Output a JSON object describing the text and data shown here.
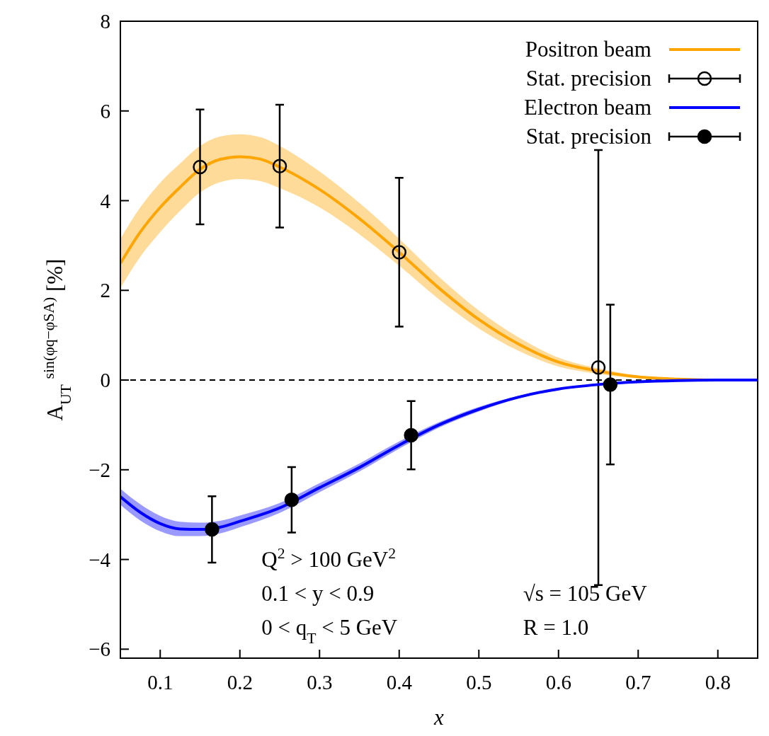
{
  "chart_data": {
    "type": "line",
    "xlabel": "x",
    "ylabel": "A$_{UT}$$^{sin(φq−φSA)}$ [%]",
    "xlim": [
      0.05,
      0.85
    ],
    "xticks": [
      0.1,
      0.2,
      0.3,
      0.4,
      0.5,
      0.6,
      0.7,
      0.8
    ],
    "ylim": [
      -6.2,
      8
    ],
    "yticks": [
      {
        "value": -6,
        "label": "−6"
      },
      {
        "value": -4,
        "label": "−4"
      },
      {
        "value": -2,
        "label": "−2"
      },
      0,
      2,
      4,
      6,
      8
    ],
    "grid": false,
    "legend": "top right",
    "ref_lines": [
      {
        "axis": "y",
        "value": 0,
        "color": "#000000",
        "line_style": "dashed"
      }
    ],
    "annotations": [
      "Q$^{2}$ > 100 GeV$^{2}$",
      "0.1 < y < 0.9",
      "0 < q$_{T}$ < 5 GeV",
      "√s = 105 GeV",
      "R = 1.0"
    ],
    "series": [
      {
        "name": "Positron beam",
        "color": "#ffa500",
        "x": [
          0.05,
          0.075,
          0.1,
          0.125,
          0.15,
          0.175,
          0.2,
          0.225,
          0.25,
          0.3,
          0.35,
          0.4,
          0.45,
          0.5,
          0.55,
          0.6,
          0.65,
          0.7,
          0.75,
          0.8,
          0.85
        ],
        "values": [
          2.6,
          3.3,
          3.85,
          4.3,
          4.7,
          4.92,
          4.98,
          4.93,
          4.75,
          4.25,
          3.6,
          2.85,
          2.05,
          1.35,
          0.8,
          0.4,
          0.2,
          0.07,
          0.02,
          0,
          0
        ],
        "lower": [
          2.05,
          2.75,
          3.3,
          3.77,
          4.18,
          4.41,
          4.48,
          4.44,
          4.28,
          3.85,
          3.25,
          2.55,
          1.8,
          1.15,
          0.65,
          0.3,
          0.14,
          0.04,
          0.01,
          0,
          0
        ],
        "upper": [
          3.15,
          3.85,
          4.4,
          4.83,
          5.22,
          5.43,
          5.48,
          5.42,
          5.22,
          4.65,
          3.95,
          3.15,
          2.3,
          1.55,
          0.95,
          0.5,
          0.26,
          0.1,
          0.03,
          0,
          0
        ]
      },
      {
        "name": "Stat. precision",
        "type": "scatter",
        "color": "#000000",
        "marker": "circle",
        "x": [
          0.15,
          0.25,
          0.4,
          0.65
        ],
        "values": [
          4.75,
          4.77,
          2.85,
          0.28
        ],
        "errors": [
          1.28,
          1.37,
          1.66,
          4.85
        ]
      },
      {
        "name": "Electron beam",
        "color": "#0000ff",
        "x": [
          0.05,
          0.075,
          0.1,
          0.125,
          0.15,
          0.175,
          0.2,
          0.25,
          0.3,
          0.35,
          0.4,
          0.45,
          0.5,
          0.55,
          0.6,
          0.65,
          0.7,
          0.75,
          0.8,
          0.85
        ],
        "values": [
          -2.6,
          -2.95,
          -3.2,
          -3.32,
          -3.33,
          -3.28,
          -3.15,
          -2.85,
          -2.4,
          -1.95,
          -1.45,
          -1.0,
          -0.65,
          -0.38,
          -0.2,
          -0.1,
          -0.04,
          -0.01,
          0,
          0
        ],
        "lower": [
          -2.78,
          -3.13,
          -3.37,
          -3.48,
          -3.48,
          -3.42,
          -3.28,
          -2.96,
          -2.5,
          -2.04,
          -1.53,
          -1.06,
          -0.7,
          -0.41,
          -0.22,
          -0.11,
          -0.05,
          -0.01,
          0,
          0
        ],
        "upper": [
          -2.42,
          -2.77,
          -3.03,
          -3.16,
          -3.18,
          -3.14,
          -3.02,
          -2.74,
          -2.3,
          -1.86,
          -1.37,
          -0.94,
          -0.6,
          -0.35,
          -0.18,
          -0.09,
          -0.03,
          -0.01,
          0,
          0
        ]
      },
      {
        "name": "Stat. precision",
        "type": "scatter",
        "color": "#000000",
        "marker": "circle",
        "x": [
          0.165,
          0.265,
          0.415,
          0.665
        ],
        "values": [
          -3.33,
          -2.67,
          -1.23,
          -0.1
        ],
        "errors": [
          0.74,
          0.73,
          0.76,
          1.78
        ]
      }
    ]
  }
}
